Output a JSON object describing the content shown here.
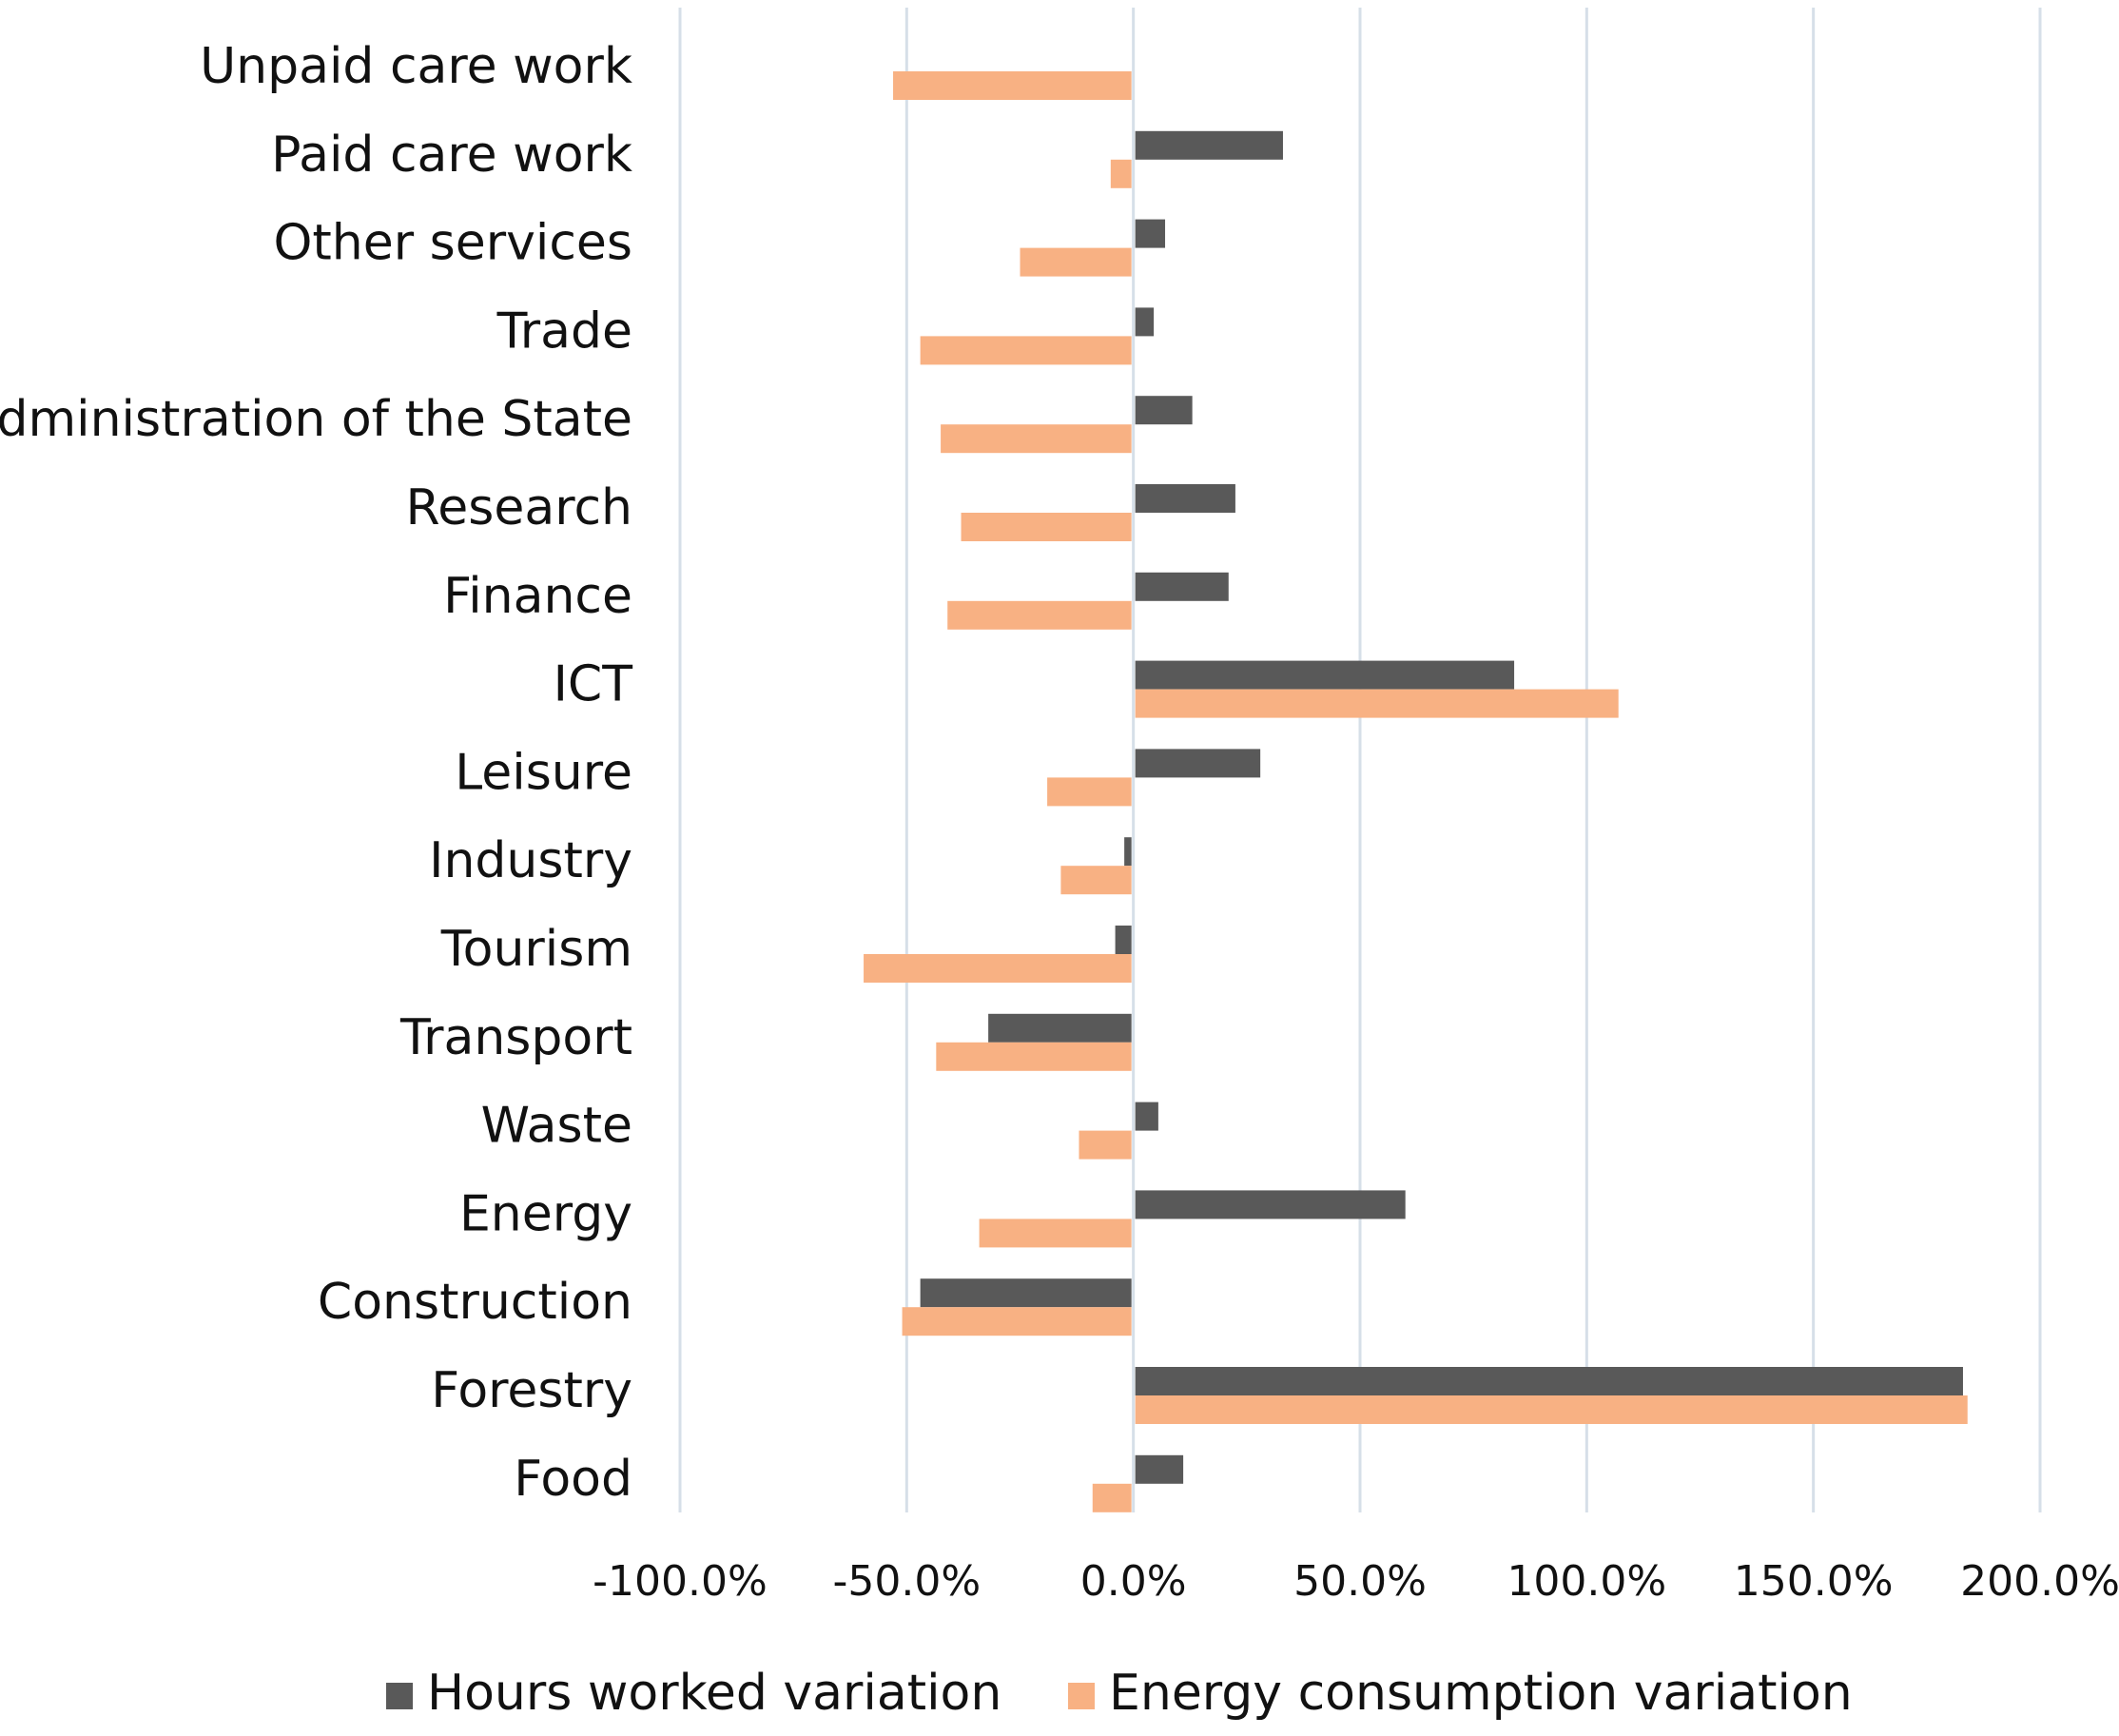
{
  "chart_data": {
    "type": "bar",
    "orientation": "horizontal",
    "title": "",
    "xlabel": "",
    "ylabel": "",
    "categories": [
      "Unpaid care work",
      "Paid care work",
      "Other services",
      "Trade",
      "Administration of the State",
      "Research",
      "Finance",
      "ICT",
      "Leisure",
      "Industry",
      "Tourism",
      "Transport",
      "Waste",
      "Energy",
      "Construction",
      "Forestry",
      "Food"
    ],
    "series": [
      {
        "name": "Hours worked variation",
        "color": "#595959",
        "values": [
          null,
          33,
          7,
          4.5,
          13,
          22.5,
          21,
          84,
          28,
          -2,
          -4,
          -32,
          5.5,
          60,
          -47,
          183,
          11
        ]
      },
      {
        "name": "Energy consumption variation",
        "color": "#f8b183",
        "values": [
          -53,
          -5,
          -25,
          -47,
          -42.5,
          -38,
          -41,
          107,
          -19,
          -16,
          -59.5,
          -43.5,
          -12,
          -34,
          -51,
          184,
          -9
        ]
      }
    ],
    "xlim": [
      -100,
      200
    ],
    "xticks": [
      -100,
      -50,
      0,
      50,
      100,
      150,
      200
    ],
    "xtick_labels": [
      "-100.0%",
      "-50.0%",
      "0.0%",
      "50.0%",
      "100.0%",
      "150.0%",
      "200.0%"
    ],
    "grid": true,
    "legend_position": "bottom"
  }
}
